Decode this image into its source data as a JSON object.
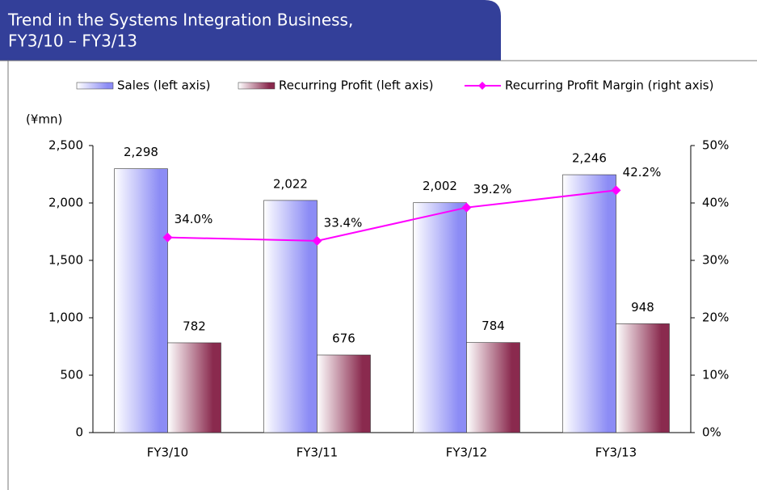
{
  "chart_data": {
    "type": "bar",
    "title": [
      "Trend in the Systems Integration Business,",
      "FY3/10 – FY3/13"
    ],
    "y_axis_label": "(¥mn)",
    "categories": [
      "FY3/10",
      "FY3/11",
      "FY3/12",
      "FY3/13"
    ],
    "series": [
      {
        "name": "Sales (left axis)",
        "type": "bar",
        "color": "#8c8cf5",
        "values": [
          2298,
          2022,
          2002,
          2246
        ],
        "value_labels": [
          "2,298",
          "2,022",
          "2,002",
          "2,246"
        ]
      },
      {
        "name": "Recurring Profit (left axis)",
        "type": "bar",
        "color": "#8a2a4e",
        "values": [
          782,
          676,
          784,
          948
        ]
      },
      {
        "name": "Recurring Profit Margin (right axis)",
        "type": "line",
        "axis": "y2",
        "color": "#ff00ff",
        "values": [
          34.0,
          33.4,
          39.2,
          42.2
        ],
        "value_labels": [
          "34.0%",
          "33.4%",
          "39.2%",
          "42.2%"
        ]
      }
    ],
    "ylim": [
      0,
      2500
    ],
    "yticks": [
      0,
      500,
      {
        "value": 1000,
        "label": "1,000"
      },
      {
        "value": 1500,
        "label": "1,500"
      },
      {
        "value": 2000,
        "label": "2,000"
      },
      {
        "value": 2500,
        "label": "2,500"
      }
    ],
    "y2lim": [
      0,
      50
    ],
    "y2ticks": [
      {
        "value": 0,
        "label": "0%"
      },
      {
        "value": 10,
        "label": "10%"
      },
      {
        "value": 20,
        "label": "20%"
      },
      {
        "value": 30,
        "label": "30%"
      },
      {
        "value": 40,
        "label": "40%"
      },
      {
        "value": 50,
        "label": "50%"
      }
    ],
    "legend": "top",
    "grid": false
  }
}
